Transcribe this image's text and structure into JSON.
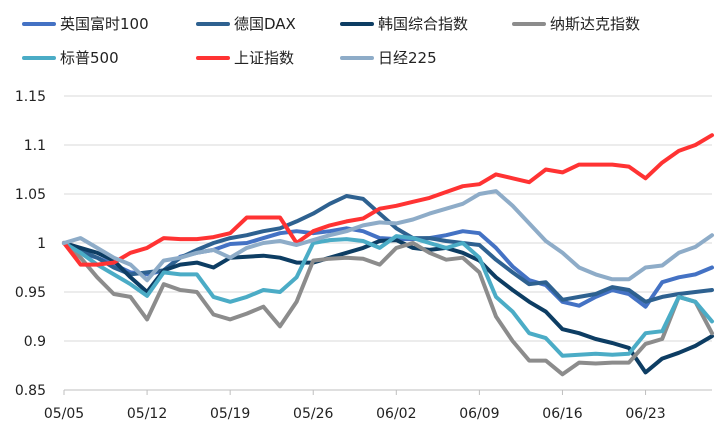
{
  "chart_data": {
    "type": "line",
    "title": "",
    "xlabel": "",
    "ylabel": "",
    "ylim": [
      0.85,
      1.15
    ],
    "yticks": [
      0.85,
      0.9,
      0.95,
      1,
      1.05,
      1.1,
      1.15
    ],
    "ytick_labels": [
      "0.85",
      "0.9",
      "0.95",
      "1",
      "1.05",
      "1.1",
      "1.15"
    ],
    "xtick_labels": [
      "05/05",
      "05/12",
      "05/19",
      "05/26",
      "06/02",
      "06/09",
      "06/16",
      "06/23"
    ],
    "xtick_index": [
      0,
      5,
      10,
      15,
      20,
      25,
      30,
      35
    ],
    "n_points": 40,
    "grid": "horizontal",
    "legend_position": "top",
    "series": [
      {
        "name": "英国富时100",
        "color": "#4472c4",
        "values": [
          1.0,
          0.99,
          0.985,
          0.978,
          0.97,
          0.968,
          0.972,
          0.986,
          0.99,
          0.993,
          0.999,
          1.0,
          1.005,
          1.01,
          1.012,
          1.01,
          1.012,
          1.015,
          1.012,
          1.005,
          1.004,
          1.004,
          1.005,
          1.008,
          1.012,
          1.01,
          0.995,
          0.976,
          0.962,
          0.957,
          0.94,
          0.936,
          0.945,
          0.952,
          0.948,
          0.935,
          0.96,
          0.965,
          0.968,
          0.975
        ]
      },
      {
        "name": "德国DAX",
        "color": "#2e6190",
        "values": [
          1.0,
          0.992,
          0.985,
          0.975,
          0.968,
          0.97,
          0.972,
          0.985,
          0.993,
          1.0,
          1.005,
          1.008,
          1.012,
          1.015,
          1.022,
          1.03,
          1.04,
          1.048,
          1.045,
          1.03,
          1.015,
          1.005,
          1.005,
          1.002,
          1.0,
          0.998,
          0.983,
          0.97,
          0.958,
          0.96,
          0.942,
          0.945,
          0.948,
          0.955,
          0.952,
          0.94,
          0.945,
          0.948,
          0.95,
          0.952
        ]
      },
      {
        "name": "韩国综合指数",
        "color": "#0d3d63",
        "values": [
          1.0,
          0.995,
          0.99,
          0.982,
          0.965,
          0.95,
          0.972,
          0.978,
          0.98,
          0.975,
          0.985,
          0.986,
          0.987,
          0.985,
          0.98,
          0.98,
          0.985,
          0.99,
          0.995,
          1.002,
          1.003,
          0.995,
          0.993,
          0.995,
          0.99,
          0.982,
          0.965,
          0.952,
          0.94,
          0.93,
          0.912,
          0.908,
          0.902,
          0.898,
          0.893,
          0.868,
          0.882,
          0.888,
          0.895,
          0.905
        ]
      },
      {
        "name": "纳斯达克指数",
        "color": "#8c8c8c",
        "values": [
          1.0,
          0.985,
          0.965,
          0.948,
          0.945,
          0.922,
          0.958,
          0.952,
          0.95,
          0.927,
          0.922,
          0.928,
          0.935,
          0.915,
          0.94,
          0.982,
          0.984,
          0.985,
          0.984,
          0.978,
          0.995,
          1.0,
          0.99,
          0.983,
          0.985,
          0.97,
          0.925,
          0.9,
          0.88,
          0.88,
          0.866,
          0.878,
          0.877,
          0.878,
          0.878,
          0.897,
          0.902,
          0.945,
          0.94,
          0.908
        ]
      },
      {
        "name": "标普500",
        "color": "#4bacc6",
        "values": [
          1.0,
          0.99,
          0.978,
          0.968,
          0.958,
          0.946,
          0.97,
          0.968,
          0.968,
          0.945,
          0.94,
          0.945,
          0.952,
          0.95,
          0.965,
          1.0,
          1.003,
          1.004,
          1.002,
          0.995,
          1.007,
          1.005,
          1.0,
          0.995,
          1.0,
          0.985,
          0.945,
          0.93,
          0.908,
          0.903,
          0.885,
          0.886,
          0.887,
          0.886,
          0.887,
          0.908,
          0.91,
          0.945,
          0.94,
          0.92
        ]
      },
      {
        "name": "上证指数",
        "color": "#ff3333",
        "values": [
          1.0,
          0.978,
          0.978,
          0.98,
          0.99,
          0.995,
          1.005,
          1.004,
          1.004,
          1.006,
          1.01,
          1.026,
          1.026,
          1.026,
          1.0,
          1.012,
          1.018,
          1.022,
          1.025,
          1.035,
          1.038,
          1.042,
          1.046,
          1.052,
          1.058,
          1.06,
          1.07,
          1.066,
          1.062,
          1.075,
          1.072,
          1.08,
          1.08,
          1.08,
          1.078,
          1.066,
          1.082,
          1.094,
          1.1,
          1.11
        ]
      },
      {
        "name": "日经225",
        "color": "#8eacc8",
        "values": [
          1.0,
          1.005,
          0.995,
          0.985,
          0.978,
          0.962,
          0.982,
          0.985,
          0.99,
          0.993,
          0.985,
          0.995,
          1.0,
          1.002,
          0.998,
          1.003,
          1.008,
          1.012,
          1.018,
          1.021,
          1.02,
          1.024,
          1.03,
          1.035,
          1.04,
          1.05,
          1.053,
          1.038,
          1.02,
          1.002,
          0.99,
          0.975,
          0.968,
          0.963,
          0.963,
          0.975,
          0.977,
          0.99,
          0.996,
          1.008
        ]
      }
    ]
  }
}
